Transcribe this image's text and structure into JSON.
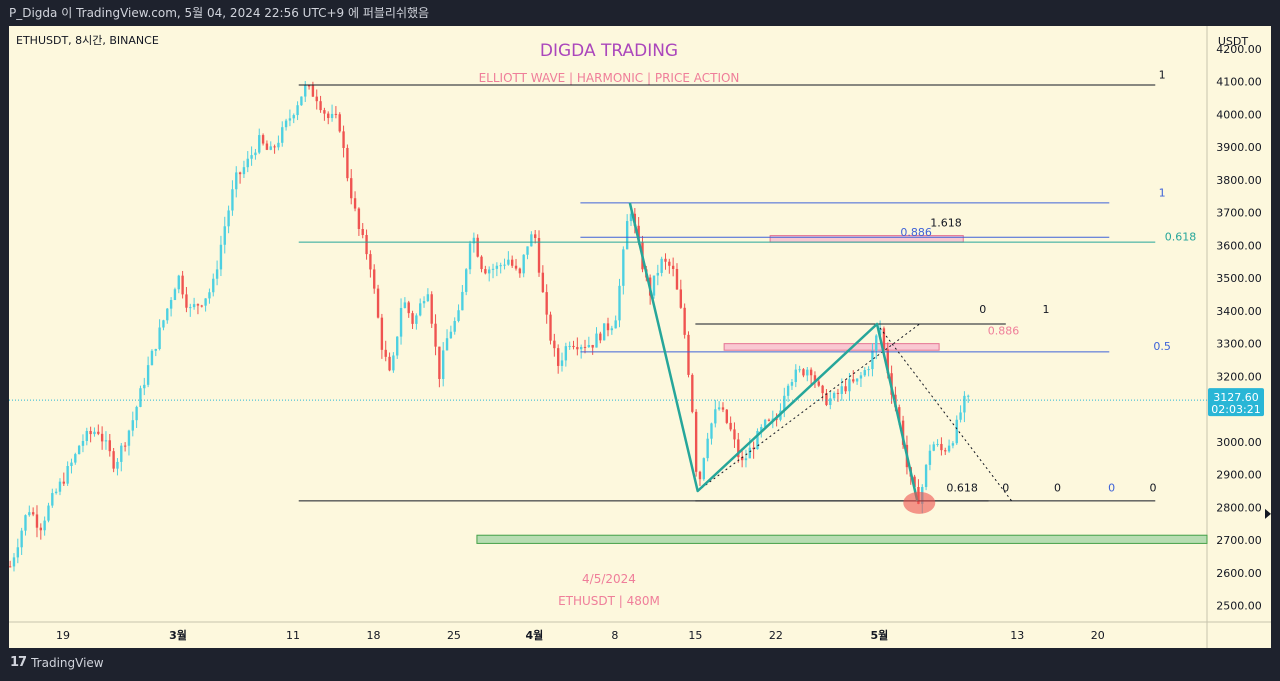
{
  "header": {
    "caption": "P_Digda 이 TradingView.com, 5월 04, 2024 22:56 UTC+9 에 퍼블리쉬했음"
  },
  "footer": {
    "brand": "TradingView",
    "logo_mark": "17"
  },
  "chart_data": {
    "type": "candlestick",
    "symbol": "ETHUSDT, 8시간, BINANCE",
    "title": "DIGDA TRADING",
    "subtitle": "ELLIOTT WAVE   |   HARMONIC   |   PRICE ACTION",
    "watermark_date": "4/5/2024",
    "watermark_info": "ETHUSDT | 480M",
    "currency": "USDT",
    "ylim": [
      2450,
      4270
    ],
    "yticks": [
      4200,
      4100,
      4000,
      3900,
      3800,
      3700,
      3600,
      3500,
      3400,
      3300,
      3200,
      3100,
      3000,
      2900,
      2800,
      2700,
      2600,
      2500
    ],
    "ytick_labels": [
      "4200.00",
      "4100.00",
      "4000.00",
      "3900.00",
      "3800.00",
      "3700.00",
      "3600.00",
      "3500.00",
      "3400.00",
      "3300.00",
      "3200.00",
      "3100.00",
      "3000.00",
      "2900.00",
      "2800.00",
      "2700.00",
      "2600.00",
      "2500.00"
    ],
    "xticks": [
      {
        "label": "19",
        "day": -10
      },
      {
        "label": "3월",
        "day": 0
      },
      {
        "label": "11",
        "day": 10
      },
      {
        "label": "18",
        "day": 17
      },
      {
        "label": "25",
        "day": 24
      },
      {
        "label": "4월",
        "day": 31
      },
      {
        "label": "8",
        "day": 38
      },
      {
        "label": "15",
        "day": 45
      },
      {
        "label": "22",
        "day": 52
      },
      {
        "label": "5월",
        "day": 61
      },
      {
        "label": "13",
        "day": 73
      },
      {
        "label": "20",
        "day": 80
      }
    ],
    "xlim_days": [
      -14.7,
      89.5
    ],
    "last_price": "3127.60",
    "countdown": "02:03:21",
    "price_path": [
      [
        -14.6,
        2620
      ],
      [
        -13,
        2800
      ],
      [
        -12,
        2740
      ],
      [
        -11,
        2820
      ],
      [
        -9,
        2950
      ],
      [
        -8.5,
        3000
      ],
      [
        -7,
        3040
      ],
      [
        -5.5,
        2930
      ],
      [
        -4,
        3060
      ],
      [
        -2.5,
        3240
      ],
      [
        -1,
        3400
      ],
      [
        0,
        3510
      ],
      [
        1,
        3400
      ],
      [
        2,
        3430
      ],
      [
        3,
        3470
      ],
      [
        4,
        3650
      ],
      [
        5,
        3800
      ],
      [
        6,
        3850
      ],
      [
        7,
        3920
      ],
      [
        8,
        3880
      ],
      [
        9,
        3940
      ],
      [
        10,
        4010
      ],
      [
        11,
        4080
      ],
      [
        12,
        4060
      ],
      [
        13,
        3990
      ],
      [
        14,
        3980
      ],
      [
        14.7,
        3820
      ],
      [
        15.7,
        3650
      ],
      [
        16.7,
        3550
      ],
      [
        17.7,
        3300
      ],
      [
        18.5,
        3190
      ],
      [
        19.5,
        3440
      ],
      [
        20.5,
        3360
      ],
      [
        21.7,
        3480
      ],
      [
        22.7,
        3200
      ],
      [
        23.5,
        3330
      ],
      [
        24.5,
        3390
      ],
      [
        25.5,
        3650
      ],
      [
        26.5,
        3530
      ],
      [
        27.7,
        3530
      ],
      [
        28.7,
        3560
      ],
      [
        29.7,
        3500
      ],
      [
        30.3,
        3600
      ],
      [
        31,
        3640
      ],
      [
        32,
        3380
      ],
      [
        33,
        3230
      ],
      [
        34,
        3310
      ],
      [
        35,
        3300
      ],
      [
        36,
        3300
      ],
      [
        37,
        3340
      ],
      [
        38,
        3370
      ],
      [
        38.5,
        3500
      ],
      [
        39,
        3650
      ],
      [
        39.3,
        3730
      ],
      [
        40,
        3600
      ],
      [
        41,
        3450
      ],
      [
        42,
        3550
      ],
      [
        43,
        3530
      ],
      [
        44,
        3350
      ],
      [
        44.7,
        3120
      ],
      [
        45.2,
        2850
      ],
      [
        46,
        3020
      ],
      [
        47,
        3110
      ],
      [
        48,
        3040
      ],
      [
        49,
        2930
      ],
      [
        50,
        2990
      ],
      [
        51,
        3050
      ],
      [
        52,
        3060
      ],
      [
        53,
        3190
      ],
      [
        54,
        3210
      ],
      [
        55,
        3230
      ],
      [
        56,
        3130
      ],
      [
        57,
        3130
      ],
      [
        58,
        3170
      ],
      [
        59,
        3180
      ],
      [
        60,
        3230
      ],
      [
        60.5,
        3280
      ],
      [
        61,
        3360
      ],
      [
        61.5,
        3260
      ],
      [
        62,
        3170
      ],
      [
        63,
        3020
      ],
      [
        63.5,
        2900
      ],
      [
        64.3,
        2820
      ],
      [
        64.8,
        2870
      ],
      [
        65.5,
        3000
      ],
      [
        66.5,
        2970
      ],
      [
        67.5,
        3020
      ],
      [
        68.3,
        3120
      ],
      [
        69,
        3127
      ]
    ],
    "trendlines": [
      {
        "kind": "horizontal",
        "price": 4090,
        "from_day": 10.5,
        "to_day": 85,
        "label": "1",
        "color": "#131722"
      },
      {
        "kind": "horizontal",
        "price": 3610,
        "from_day": 10.5,
        "to_day": 85,
        "label": "0.618",
        "color": "#26a69a"
      },
      {
        "kind": "horizontal",
        "price": 2820,
        "from_day": 10.5,
        "to_day": 85,
        "label": "0",
        "color": "#131722"
      },
      {
        "kind": "horizontal",
        "price": 3730,
        "from_day": 35,
        "to_day": 81,
        "label": "1",
        "color": "#3f63d8"
      },
      {
        "kind": "horizontal",
        "price": 3625,
        "from_day": 35,
        "to_day": 81,
        "label": "0.886",
        "color": "#3f63d8"
      },
      {
        "kind": "horizontal",
        "price": 3275,
        "from_day": 35,
        "to_day": 81,
        "label": "0.5",
        "color": "#3f63d8"
      },
      {
        "kind": "horizontal",
        "price": 3360,
        "from_day": 45,
        "to_day": 72,
        "label": "1",
        "color": "#131722"
      },
      {
        "kind": "horizontal",
        "price": 2820,
        "from_day": 45,
        "to_day": 70.5,
        "label": "0",
        "color": "#131722"
      }
    ],
    "zones": [
      {
        "name": "0.886 zone upper",
        "top": 3630,
        "bottom": 3610,
        "from_day": 51.5,
        "to_day": 68.3,
        "color": "#f8bbd0"
      },
      {
        "name": "0.886 zone lower",
        "top": 3300,
        "bottom": 3280,
        "from_day": 47.5,
        "to_day": 66.2,
        "color": "#f8bbd0"
      },
      {
        "name": "support zone",
        "top": 2715,
        "bottom": 2690,
        "from_day": 26,
        "to_day": 89.5,
        "color": "#a5d6a7"
      }
    ],
    "pattern_points": [
      [
        39.3,
        3730
      ],
      [
        45.2,
        2850
      ],
      [
        60.8,
        3360
      ],
      [
        64.3,
        2820
      ]
    ],
    "dotted_lines": [
      [
        [
          45.2,
          2850
        ],
        [
          64.5,
          3360
        ]
      ],
      [
        [
          60.8,
          3360
        ],
        [
          72.5,
          2820
        ]
      ]
    ],
    "fib_labels": [
      {
        "text": "1.618",
        "day": 66.8,
        "price": 3640,
        "color": "#131722"
      },
      {
        "text": "0.886",
        "day": 64.2,
        "price": 3610,
        "color": "#3f63d8"
      },
      {
        "text": "0",
        "day": 70,
        "price": 3375,
        "color": "#131722"
      },
      {
        "text": "1",
        "day": 75.5,
        "price": 3375,
        "color": "#131722"
      },
      {
        "text": "0.886",
        "day": 71.8,
        "price": 3310,
        "color": "#ef7e9a"
      },
      {
        "text": "0.618",
        "day": 68.2,
        "price": 2830,
        "color": "#131722"
      },
      {
        "text": "0",
        "day": 72,
        "price": 2830,
        "color": "#131722"
      },
      {
        "text": "0",
        "day": 76.5,
        "price": 2830,
        "color": "#131722"
      },
      {
        "text": "0",
        "day": 81.2,
        "price": 2830,
        "color": "#3f63d8"
      },
      {
        "text": "0",
        "day": 84.8,
        "price": 2830,
        "color": "#131722"
      }
    ],
    "right_labels": [
      {
        "text": "1",
        "price": 4110,
        "color": "#131722"
      },
      {
        "text": "1",
        "price": 3750,
        "color": "#3f63d8"
      },
      {
        "text": "0.618",
        "price": 3615,
        "color": "#26a69a"
      },
      {
        "text": "0.5",
        "price": 3280,
        "color": "#3f63d8"
      }
    ]
  },
  "colors": {
    "bg": "#fdf8dd",
    "up": "#4dd0e1",
    "down": "#ef5350",
    "pattern": "#26a69a",
    "title": "#ab47bc",
    "subtitle": "#ef7e9a",
    "price_label_bg": "#29b6d6"
  }
}
